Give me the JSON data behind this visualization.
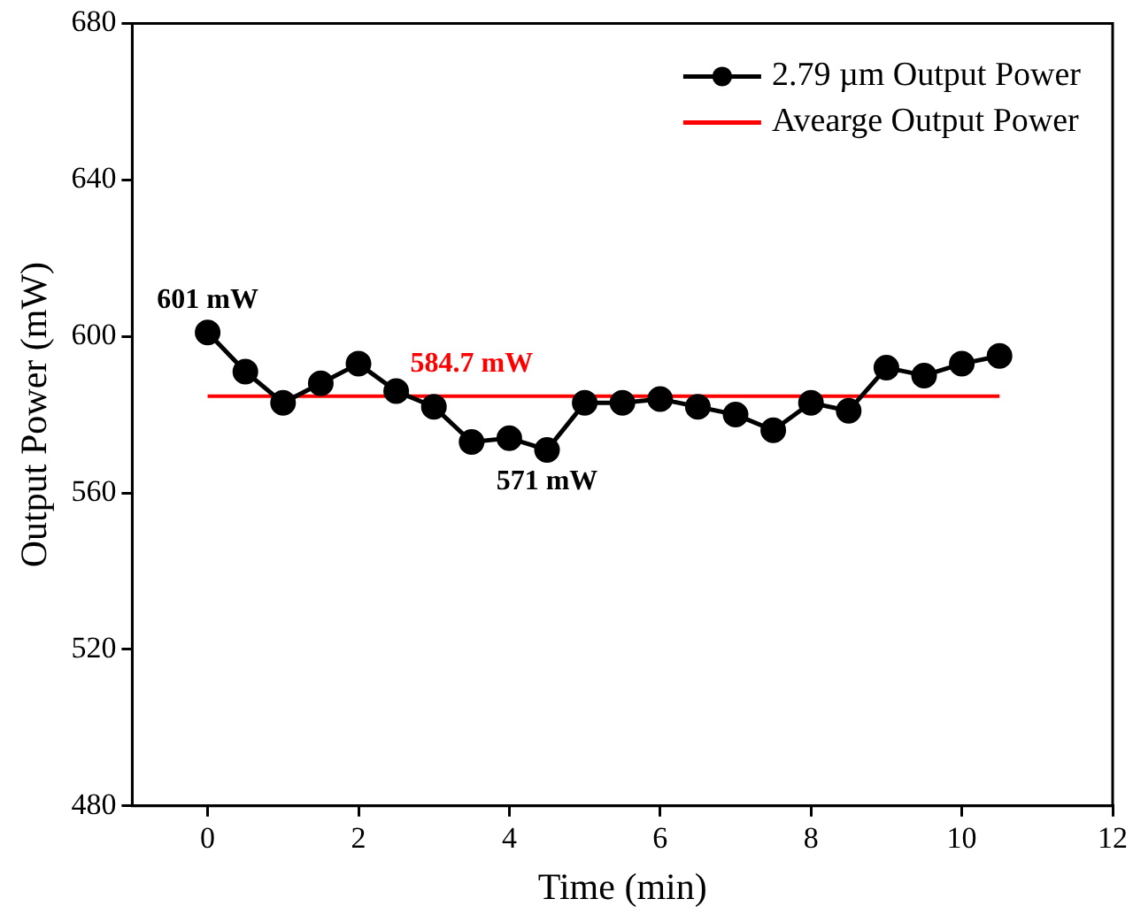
{
  "chart_data": {
    "type": "line",
    "xlabel": "Time (min)",
    "ylabel": "Output Power (mW)",
    "xlim": [
      -1,
      12
    ],
    "xticks": [
      0,
      2,
      4,
      6,
      8,
      10,
      12
    ],
    "ylim": [
      480,
      680
    ],
    "yticks": [
      480,
      520,
      560,
      600,
      640,
      680
    ],
    "grid": false,
    "legend": "top right",
    "marker": "circle",
    "line_style": "solid",
    "series": [
      {
        "name": "2.79 µm Output Power",
        "color": "#000000",
        "x": [
          0,
          0.5,
          1,
          1.5,
          2,
          2.5,
          3,
          3.5,
          4,
          4.5,
          5,
          5.5,
          6,
          6.5,
          7,
          7.5,
          8,
          8.5,
          9,
          9.5,
          10,
          10.5
        ],
        "values": [
          601,
          591,
          583,
          588,
          593,
          586,
          582,
          573,
          574,
          571,
          583,
          583,
          584,
          582,
          580,
          576,
          583,
          581,
          592,
          590,
          593,
          595
        ]
      },
      {
        "name": "Avearge Output Power",
        "color": "#ff0000",
        "marker": "none",
        "x": [
          0,
          10.5
        ],
        "values": [
          584.7,
          584.7
        ]
      }
    ],
    "annotations": [
      {
        "text": "601 mW",
        "x": 0,
        "y": 601
      },
      {
        "text": "584.7 mW",
        "x": 3.5,
        "y": 584.7
      },
      {
        "text": "571 mW",
        "x": 4.5,
        "y": 571
      }
    ]
  }
}
